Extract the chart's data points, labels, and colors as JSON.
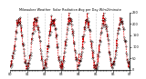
{
  "title": "Milwaukee Weather  Solar Radiation Avg per Day W/m2/minute",
  "line_color": "#DD0000",
  "bg_color": "#FFFFFF",
  "grid_color": "#999999",
  "ylim": [
    0,
    250
  ],
  "ytick_values": [
    0,
    50,
    100,
    150,
    200,
    250
  ],
  "ytick_labels": [
    "0",
    "50",
    "100",
    "150",
    "200",
    "250"
  ],
  "num_years": 7,
  "points_per_year": 52,
  "amplitude": 105,
  "baseline": 115,
  "phase_shift": -1.57,
  "noise_scale": 15
}
